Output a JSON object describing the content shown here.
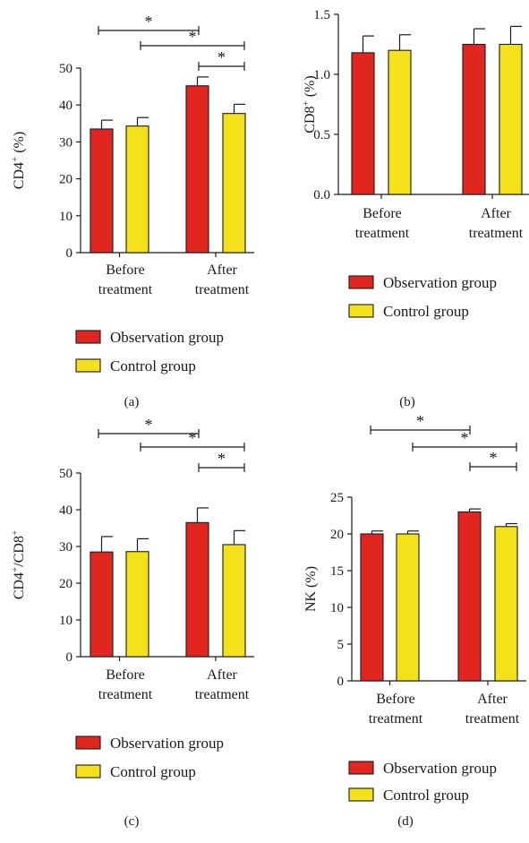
{
  "colors": {
    "observation": "#e0261e",
    "control": "#f4e11c",
    "ink": "#1a1a1a"
  },
  "legend": {
    "observation": "Observation group",
    "control": "Control group"
  },
  "chart_data": [
    {
      "panel": "(a)",
      "type": "bar",
      "ylabel": "CD4",
      "ylabel_sup": "+",
      "ylabel_suffix": " (%)",
      "categories": [
        [
          "Before",
          "treatment"
        ],
        [
          "After",
          "treatment"
        ]
      ],
      "ylim": [
        0,
        50
      ],
      "yticks": [
        "0",
        "10",
        "20",
        "30",
        "40",
        "50"
      ],
      "series": [
        {
          "name": "Observation group",
          "values": [
            33.5,
            45.2
          ],
          "errors": [
            2.4,
            2.4
          ]
        },
        {
          "name": "Control group",
          "values": [
            34.3,
            37.7
          ],
          "errors": [
            2.3,
            2.5
          ]
        }
      ],
      "significance": [
        {
          "from": "Before treatment / Observation group",
          "to": "After treatment / Observation group",
          "label": "*"
        },
        {
          "from": "Before treatment / Control group",
          "to": "After treatment / Control group",
          "label": "*"
        },
        {
          "from": "After treatment / Observation group",
          "to": "After treatment / Control group",
          "label": "*"
        }
      ]
    },
    {
      "panel": "(b)",
      "type": "bar",
      "ylabel": "CD8",
      "ylabel_sup": "+",
      "ylabel_suffix": " (%)",
      "categories": [
        [
          "Before",
          "treatment"
        ],
        [
          "After",
          "treatment"
        ]
      ],
      "ylim": [
        0,
        1.5
      ],
      "yticks": [
        "0.0",
        "0.5",
        "1.0",
        "1.5"
      ],
      "series": [
        {
          "name": "Observation group",
          "values": [
            1.18,
            1.25
          ],
          "errors": [
            0.14,
            0.13
          ]
        },
        {
          "name": "Control group",
          "values": [
            1.2,
            1.25
          ],
          "errors": [
            0.13,
            0.15
          ]
        }
      ],
      "significance": []
    },
    {
      "panel": "(c)",
      "type": "bar",
      "ylabel": "CD4",
      "ylabel_sup": "+",
      "ylabel_mid": "/CD8",
      "ylabel_sup2": "+",
      "categories": [
        [
          "Before",
          "treatment"
        ],
        [
          "After",
          "treatment"
        ]
      ],
      "ylim": [
        0,
        50
      ],
      "yticks": [
        "0",
        "10",
        "20",
        "30",
        "40",
        "50"
      ],
      "series": [
        {
          "name": "Observation group",
          "values": [
            28.5,
            36.5
          ],
          "errors": [
            4.2,
            4.0
          ]
        },
        {
          "name": "Control group",
          "values": [
            28.6,
            30.5
          ],
          "errors": [
            3.5,
            3.8
          ]
        }
      ],
      "significance": [
        {
          "from": "Before treatment / Observation group",
          "to": "After treatment / Observation group",
          "label": "*"
        },
        {
          "from": "Before treatment / Control group",
          "to": "After treatment / Control group",
          "label": "*"
        },
        {
          "from": "After treatment / Observation group",
          "to": "After treatment / Control group",
          "label": "*"
        }
      ]
    },
    {
      "panel": "(d)",
      "type": "bar",
      "ylabel": "NK (%)",
      "categories": [
        [
          "Before",
          "treatment"
        ],
        [
          "After",
          "treatment"
        ]
      ],
      "ylim": [
        0,
        25
      ],
      "yticks": [
        "0",
        "5",
        "10",
        "15",
        "20",
        "25"
      ],
      "series": [
        {
          "name": "Observation group",
          "values": [
            20.0,
            23.0
          ],
          "errors": [
            0.4,
            0.4
          ]
        },
        {
          "name": "Control group",
          "values": [
            20.0,
            21.0
          ],
          "errors": [
            0.4,
            0.4
          ]
        }
      ],
      "significance": [
        {
          "from": "Before treatment / Observation group",
          "to": "After treatment / Observation group",
          "label": "*"
        },
        {
          "from": "Before treatment / Control group",
          "to": "After treatment / Control group",
          "label": "*"
        },
        {
          "from": "After treatment / Observation group",
          "to": "After treatment / Control group",
          "label": "*"
        }
      ]
    }
  ]
}
